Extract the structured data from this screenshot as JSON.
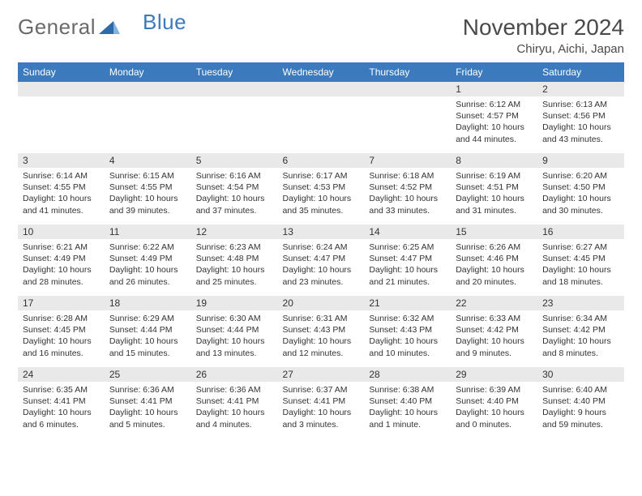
{
  "logo": {
    "text1": "General",
    "text2": "Blue"
  },
  "title": "November 2024",
  "location": "Chiryu, Aichi, Japan",
  "colors": {
    "header_bg": "#3a7abd",
    "header_fg": "#ffffff",
    "daynum_bg": "#e9e9e9",
    "text": "#333333",
    "logo_gray": "#6a6a6a",
    "logo_blue": "#3a7abd"
  },
  "weekdays": [
    "Sunday",
    "Monday",
    "Tuesday",
    "Wednesday",
    "Thursday",
    "Friday",
    "Saturday"
  ],
  "grid": [
    [
      null,
      null,
      null,
      null,
      null,
      {
        "n": "1",
        "sr": "6:12 AM",
        "ss": "4:57 PM",
        "dl": "10 hours and 44 minutes."
      },
      {
        "n": "2",
        "sr": "6:13 AM",
        "ss": "4:56 PM",
        "dl": "10 hours and 43 minutes."
      }
    ],
    [
      {
        "n": "3",
        "sr": "6:14 AM",
        "ss": "4:55 PM",
        "dl": "10 hours and 41 minutes."
      },
      {
        "n": "4",
        "sr": "6:15 AM",
        "ss": "4:55 PM",
        "dl": "10 hours and 39 minutes."
      },
      {
        "n": "5",
        "sr": "6:16 AM",
        "ss": "4:54 PM",
        "dl": "10 hours and 37 minutes."
      },
      {
        "n": "6",
        "sr": "6:17 AM",
        "ss": "4:53 PM",
        "dl": "10 hours and 35 minutes."
      },
      {
        "n": "7",
        "sr": "6:18 AM",
        "ss": "4:52 PM",
        "dl": "10 hours and 33 minutes."
      },
      {
        "n": "8",
        "sr": "6:19 AM",
        "ss": "4:51 PM",
        "dl": "10 hours and 31 minutes."
      },
      {
        "n": "9",
        "sr": "6:20 AM",
        "ss": "4:50 PM",
        "dl": "10 hours and 30 minutes."
      }
    ],
    [
      {
        "n": "10",
        "sr": "6:21 AM",
        "ss": "4:49 PM",
        "dl": "10 hours and 28 minutes."
      },
      {
        "n": "11",
        "sr": "6:22 AM",
        "ss": "4:49 PM",
        "dl": "10 hours and 26 minutes."
      },
      {
        "n": "12",
        "sr": "6:23 AM",
        "ss": "4:48 PM",
        "dl": "10 hours and 25 minutes."
      },
      {
        "n": "13",
        "sr": "6:24 AM",
        "ss": "4:47 PM",
        "dl": "10 hours and 23 minutes."
      },
      {
        "n": "14",
        "sr": "6:25 AM",
        "ss": "4:47 PM",
        "dl": "10 hours and 21 minutes."
      },
      {
        "n": "15",
        "sr": "6:26 AM",
        "ss": "4:46 PM",
        "dl": "10 hours and 20 minutes."
      },
      {
        "n": "16",
        "sr": "6:27 AM",
        "ss": "4:45 PM",
        "dl": "10 hours and 18 minutes."
      }
    ],
    [
      {
        "n": "17",
        "sr": "6:28 AM",
        "ss": "4:45 PM",
        "dl": "10 hours and 16 minutes."
      },
      {
        "n": "18",
        "sr": "6:29 AM",
        "ss": "4:44 PM",
        "dl": "10 hours and 15 minutes."
      },
      {
        "n": "19",
        "sr": "6:30 AM",
        "ss": "4:44 PM",
        "dl": "10 hours and 13 minutes."
      },
      {
        "n": "20",
        "sr": "6:31 AM",
        "ss": "4:43 PM",
        "dl": "10 hours and 12 minutes."
      },
      {
        "n": "21",
        "sr": "6:32 AM",
        "ss": "4:43 PM",
        "dl": "10 hours and 10 minutes."
      },
      {
        "n": "22",
        "sr": "6:33 AM",
        "ss": "4:42 PM",
        "dl": "10 hours and 9 minutes."
      },
      {
        "n": "23",
        "sr": "6:34 AM",
        "ss": "4:42 PM",
        "dl": "10 hours and 8 minutes."
      }
    ],
    [
      {
        "n": "24",
        "sr": "6:35 AM",
        "ss": "4:41 PM",
        "dl": "10 hours and 6 minutes."
      },
      {
        "n": "25",
        "sr": "6:36 AM",
        "ss": "4:41 PM",
        "dl": "10 hours and 5 minutes."
      },
      {
        "n": "26",
        "sr": "6:36 AM",
        "ss": "4:41 PM",
        "dl": "10 hours and 4 minutes."
      },
      {
        "n": "27",
        "sr": "6:37 AM",
        "ss": "4:41 PM",
        "dl": "10 hours and 3 minutes."
      },
      {
        "n": "28",
        "sr": "6:38 AM",
        "ss": "4:40 PM",
        "dl": "10 hours and 1 minute."
      },
      {
        "n": "29",
        "sr": "6:39 AM",
        "ss": "4:40 PM",
        "dl": "10 hours and 0 minutes."
      },
      {
        "n": "30",
        "sr": "6:40 AM",
        "ss": "4:40 PM",
        "dl": "9 hours and 59 minutes."
      }
    ]
  ],
  "labels": {
    "sunrise": "Sunrise:",
    "sunset": "Sunset:",
    "daylight": "Daylight:"
  }
}
